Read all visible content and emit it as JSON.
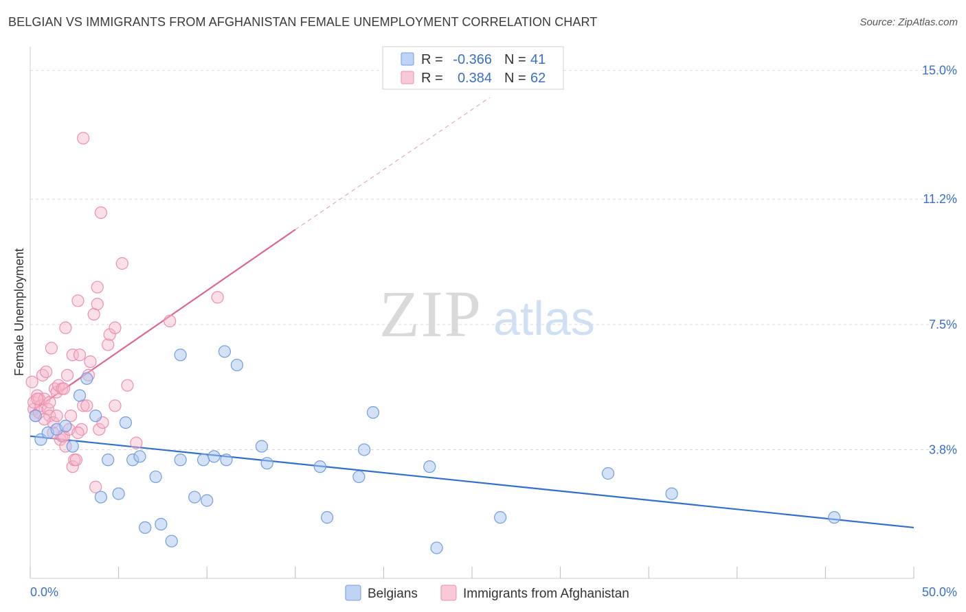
{
  "header": {
    "title": "BELGIAN VS IMMIGRANTS FROM AFGHANISTAN FEMALE UNEMPLOYMENT CORRELATION CHART",
    "source": "Source: ZipAtlas.com"
  },
  "watermark": {
    "zip": "ZIP",
    "atlas": "atlas"
  },
  "colors": {
    "belgian_fill": "#a9c6f0",
    "belgian_stroke": "#6f9de0",
    "belgian_line": "#2f6fd0",
    "afghan_fill": "#f6b8cb",
    "afghan_stroke": "#ec8fab",
    "afghan_line": "#e0648f",
    "grid": "#d9d9d9",
    "tick_text": "#3a6fc9"
  },
  "legend": {
    "r_label": "R =",
    "n_label": "N =",
    "belgian": {
      "r": "-0.366",
      "n": "41"
    },
    "afghan": {
      "r": "0.384",
      "n": "62"
    }
  },
  "chart_data": {
    "type": "scatter",
    "title": "BELGIAN VS IMMIGRANTS FROM AFGHANISTAN FEMALE UNEMPLOYMENT CORRELATION CHART",
    "xlabel": "",
    "ylabel": "Female Unemployment",
    "xlim": [
      0,
      50
    ],
    "ylim": [
      0,
      15.5
    ],
    "x_tick_labels": {
      "min": "0.0%",
      "max": "50.0%"
    },
    "y_ticks": [
      3.8,
      7.5,
      11.2,
      15.0
    ],
    "y_tick_labels": [
      "3.8%",
      "7.5%",
      "11.2%",
      "15.0%"
    ],
    "legend_position": "top-center",
    "series": [
      {
        "name": "Belgians",
        "r": -0.366,
        "n": 41,
        "trend": {
          "x0": 0,
          "y0": 4.2,
          "x1": 50,
          "y1": 1.5
        },
        "points": [
          [
            0.3,
            4.8
          ],
          [
            0.6,
            4.1
          ],
          [
            1.0,
            4.3
          ],
          [
            1.5,
            4.4
          ],
          [
            2.0,
            4.5
          ],
          [
            2.4,
            3.9
          ],
          [
            2.8,
            5.4
          ],
          [
            3.2,
            5.9
          ],
          [
            3.7,
            4.8
          ],
          [
            4.0,
            2.4
          ],
          [
            4.4,
            3.5
          ],
          [
            5.0,
            2.5
          ],
          [
            5.4,
            4.6
          ],
          [
            5.8,
            3.5
          ],
          [
            6.2,
            3.6
          ],
          [
            6.5,
            1.5
          ],
          [
            7.1,
            3.0
          ],
          [
            7.4,
            1.6
          ],
          [
            8.0,
            1.1
          ],
          [
            8.5,
            6.6
          ],
          [
            8.5,
            3.5
          ],
          [
            9.3,
            2.4
          ],
          [
            9.8,
            3.5
          ],
          [
            10.0,
            2.3
          ],
          [
            10.4,
            3.6
          ],
          [
            11.0,
            6.7
          ],
          [
            11.1,
            3.5
          ],
          [
            11.7,
            6.3
          ],
          [
            13.1,
            3.9
          ],
          [
            13.4,
            3.4
          ],
          [
            16.4,
            3.3
          ],
          [
            16.8,
            1.8
          ],
          [
            18.6,
            3.0
          ],
          [
            18.9,
            3.8
          ],
          [
            19.4,
            4.9
          ],
          [
            22.6,
            3.3
          ],
          [
            23.0,
            0.9
          ],
          [
            26.6,
            1.8
          ],
          [
            32.7,
            3.1
          ],
          [
            36.3,
            2.5
          ],
          [
            45.5,
            1.8
          ]
        ]
      },
      {
        "name": "Immigrants from Afghanistan",
        "r": 0.384,
        "n": 62,
        "trend": {
          "x0": 0,
          "y0": 4.9,
          "x1": 15,
          "y1": 10.3
        },
        "trend_dashed": {
          "x0": 15,
          "y0": 10.3,
          "x1": 26,
          "y1": 14.2
        },
        "points": [
          [
            0.1,
            5.8
          ],
          [
            0.2,
            5.0
          ],
          [
            0.2,
            5.2
          ],
          [
            0.3,
            4.8
          ],
          [
            0.4,
            5.4
          ],
          [
            0.5,
            4.9
          ],
          [
            0.5,
            5.3
          ],
          [
            0.6,
            5.1
          ],
          [
            0.7,
            6.0
          ],
          [
            0.8,
            5.3
          ],
          [
            0.9,
            6.1
          ],
          [
            1.0,
            5.0
          ],
          [
            1.1,
            5.2
          ],
          [
            1.1,
            4.8
          ],
          [
            1.2,
            6.8
          ],
          [
            1.3,
            4.6
          ],
          [
            1.4,
            5.6
          ],
          [
            1.5,
            4.8
          ],
          [
            1.5,
            5.5
          ],
          [
            1.6,
            5.7
          ],
          [
            1.7,
            4.1
          ],
          [
            1.8,
            5.6
          ],
          [
            1.8,
            4.2
          ],
          [
            1.9,
            4.2
          ],
          [
            2.0,
            3.9
          ],
          [
            2.0,
            7.4
          ],
          [
            2.1,
            6.0
          ],
          [
            2.2,
            4.4
          ],
          [
            2.3,
            4.8
          ],
          [
            2.4,
            6.6
          ],
          [
            2.4,
            3.3
          ],
          [
            2.5,
            3.5
          ],
          [
            2.6,
            3.5
          ],
          [
            2.7,
            8.2
          ],
          [
            2.8,
            6.6
          ],
          [
            2.9,
            4.4
          ],
          [
            3.0,
            5.1
          ],
          [
            3.0,
            13.0
          ],
          [
            3.2,
            5.1
          ],
          [
            3.3,
            6.0
          ],
          [
            3.4,
            6.4
          ],
          [
            3.6,
            7.8
          ],
          [
            3.7,
            2.7
          ],
          [
            3.8,
            8.6
          ],
          [
            3.8,
            8.1
          ],
          [
            3.9,
            4.4
          ],
          [
            4.0,
            10.8
          ],
          [
            4.1,
            4.6
          ],
          [
            4.4,
            6.9
          ],
          [
            4.5,
            7.2
          ],
          [
            4.8,
            5.1
          ],
          [
            4.8,
            7.4
          ],
          [
            5.2,
            9.3
          ],
          [
            5.5,
            5.7
          ],
          [
            6.0,
            4.0
          ],
          [
            7.9,
            7.6
          ],
          [
            10.6,
            8.3
          ],
          [
            1.9,
            5.6
          ],
          [
            0.8,
            4.7
          ],
          [
            1.3,
            4.3
          ],
          [
            2.7,
            4.3
          ],
          [
            0.4,
            5.3
          ]
        ]
      }
    ]
  },
  "bottom_legend": {
    "belgians": "Belgians",
    "afghan": "Immigrants from Afghanistan"
  }
}
